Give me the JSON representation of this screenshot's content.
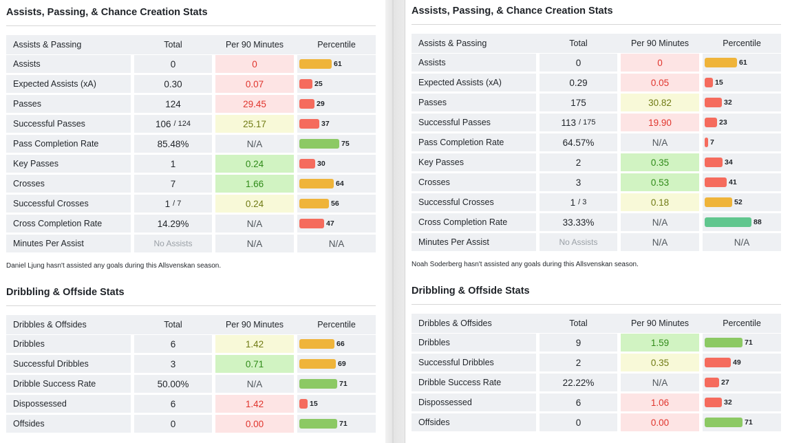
{
  "left": {
    "assists_title": "Assists, Passing, & Chance Creation Stats",
    "assists_headers": [
      "Assists & Passing",
      "Total",
      "Per 90 Minutes",
      "Percentile"
    ],
    "assists_rows": [
      {
        "name": "Assists",
        "total": "0",
        "p90": "0",
        "p90_rating": "bad",
        "pct_label": "61",
        "pct_value": 61,
        "bar_color": "orange"
      },
      {
        "name": "Expected Assists (xA)",
        "total": "0.30",
        "p90": "0.07",
        "p90_rating": "bad",
        "pct_label": "25",
        "pct_value": 25,
        "bar_color": "red"
      },
      {
        "name": "Passes",
        "total": "124",
        "p90": "29.45",
        "p90_rating": "bad",
        "pct_label": "29",
        "pct_value": 29,
        "bar_color": "red"
      },
      {
        "name": "Successful Passes",
        "total": "106",
        "total_of": "/ 124",
        "p90": "25.17",
        "p90_rating": "mid",
        "pct_label": "37",
        "pct_value": 37,
        "bar_color": "red"
      },
      {
        "name": "Pass Completion Rate",
        "total": "85.48%",
        "p90": "N/A",
        "p90_rating": "neutral",
        "pct_label": "75",
        "pct_value": 75,
        "bar_color": "green"
      },
      {
        "name": "Key Passes",
        "total": "1",
        "p90": "0.24",
        "p90_rating": "good",
        "pct_label": "30",
        "pct_value": 30,
        "bar_color": "red"
      },
      {
        "name": "Crosses",
        "total": "7",
        "p90": "1.66",
        "p90_rating": "good",
        "pct_label": "64",
        "pct_value": 64,
        "bar_color": "orange"
      },
      {
        "name": "Successful Crosses",
        "total": "1",
        "total_of": "/ 7",
        "p90": "0.24",
        "p90_rating": "mid",
        "pct_label": "56",
        "pct_value": 56,
        "bar_color": "orange"
      },
      {
        "name": "Cross Completion Rate",
        "total": "14.29%",
        "p90": "N/A",
        "p90_rating": "neutral",
        "pct_label": "47",
        "pct_value": 47,
        "bar_color": "red"
      },
      {
        "name": "Minutes Per Assist",
        "total": "No Assists",
        "total_muted": true,
        "p90": "N/A",
        "p90_rating": "neutral",
        "pct_label": "N/A"
      }
    ],
    "note": "Daniel Ljung hasn't assisted any goals during this Allsvenskan season.",
    "dribbling_title": "Dribbling & Offside Stats",
    "dribbling_headers": [
      "Dribbles & Offsides",
      "Total",
      "Per 90 Minutes",
      "Percentile"
    ],
    "dribbling_rows": [
      {
        "name": "Dribbles",
        "total": "6",
        "p90": "1.42",
        "p90_rating": "mid",
        "pct_label": "66",
        "pct_value": 66,
        "bar_color": "orange"
      },
      {
        "name": "Successful Dribbles",
        "total": "3",
        "p90": "0.71",
        "p90_rating": "good",
        "pct_label": "69",
        "pct_value": 69,
        "bar_color": "orange"
      },
      {
        "name": "Dribble Success Rate",
        "total": "50.00%",
        "p90": "N/A",
        "p90_rating": "neutral",
        "pct_label": "71",
        "pct_value": 71,
        "bar_color": "green"
      },
      {
        "name": "Dispossessed",
        "total": "6",
        "p90": "1.42",
        "p90_rating": "bad",
        "pct_label": "15",
        "pct_value": 15,
        "bar_color": "red"
      },
      {
        "name": "Offsides",
        "total": "0",
        "p90": "0.00",
        "p90_rating": "bad",
        "pct_label": "71",
        "pct_value": 71,
        "bar_color": "green"
      }
    ]
  },
  "right": {
    "assists_title": "Assists, Passing, & Chance Creation Stats",
    "assists_headers": [
      "Assists & Passing",
      "Total",
      "Per 90 Minutes",
      "Percentile"
    ],
    "assists_rows": [
      {
        "name": "Assists",
        "total": "0",
        "p90": "0",
        "p90_rating": "bad",
        "pct_label": "61",
        "pct_value": 61,
        "bar_color": "orange"
      },
      {
        "name": "Expected Assists (xA)",
        "total": "0.29",
        "p90": "0.05",
        "p90_rating": "bad",
        "pct_label": "15",
        "pct_value": 15,
        "bar_color": "red"
      },
      {
        "name": "Passes",
        "total": "175",
        "p90": "30.82",
        "p90_rating": "mid",
        "pct_label": "32",
        "pct_value": 32,
        "bar_color": "red"
      },
      {
        "name": "Successful Passes",
        "total": "113",
        "total_of": "/ 175",
        "p90": "19.90",
        "p90_rating": "bad",
        "pct_label": "23",
        "pct_value": 23,
        "bar_color": "red"
      },
      {
        "name": "Pass Completion Rate",
        "total": "64.57%",
        "p90": "N/A",
        "p90_rating": "neutral",
        "pct_label": "7",
        "pct_value": 7,
        "bar_color": "red"
      },
      {
        "name": "Key Passes",
        "total": "2",
        "p90": "0.35",
        "p90_rating": "good",
        "pct_label": "34",
        "pct_value": 34,
        "bar_color": "red"
      },
      {
        "name": "Crosses",
        "total": "3",
        "p90": "0.53",
        "p90_rating": "good",
        "pct_label": "41",
        "pct_value": 41,
        "bar_color": "red"
      },
      {
        "name": "Successful Crosses",
        "total": "1",
        "total_of": "/ 3",
        "p90": "0.18",
        "p90_rating": "mid",
        "pct_label": "52",
        "pct_value": 52,
        "bar_color": "orange"
      },
      {
        "name": "Cross Completion Rate",
        "total": "33.33%",
        "p90": "N/A",
        "p90_rating": "neutral",
        "pct_label": "88",
        "pct_value": 88,
        "bar_color": "teal"
      },
      {
        "name": "Minutes Per Assist",
        "total": "No Assists",
        "total_muted": true,
        "p90": "N/A",
        "p90_rating": "neutral",
        "pct_label": "N/A"
      }
    ],
    "note": "Noah Soderberg hasn't assisted any goals during this Allsvenskan season.",
    "dribbling_title": "Dribbling & Offside Stats",
    "dribbling_headers": [
      "Dribbles & Offsides",
      "Total",
      "Per 90 Minutes",
      "Percentile"
    ],
    "dribbling_rows": [
      {
        "name": "Dribbles",
        "total": "9",
        "p90": "1.59",
        "p90_rating": "good",
        "pct_label": "71",
        "pct_value": 71,
        "bar_color": "green"
      },
      {
        "name": "Successful Dribbles",
        "total": "2",
        "p90": "0.35",
        "p90_rating": "mid",
        "pct_label": "49",
        "pct_value": 49,
        "bar_color": "red"
      },
      {
        "name": "Dribble Success Rate",
        "total": "22.22%",
        "p90": "N/A",
        "p90_rating": "neutral",
        "pct_label": "27",
        "pct_value": 27,
        "bar_color": "red"
      },
      {
        "name": "Dispossessed",
        "total": "6",
        "p90": "1.06",
        "p90_rating": "bad",
        "pct_label": "32",
        "pct_value": 32,
        "bar_color": "red"
      },
      {
        "name": "Offsides",
        "total": "0",
        "p90": "0.00",
        "p90_rating": "bad",
        "pct_label": "71",
        "pct_value": 71,
        "bar_color": "green"
      }
    ]
  },
  "colors": {
    "bar_red": "#f56b5d",
    "bar_orange": "#efb43a",
    "bar_green": "#8cc964",
    "bar_teal": "#60c68e",
    "p90_bad_bg": "#fde4e4",
    "p90_mid_bg": "#f8f9d8",
    "p90_good_bg": "#d1f3c2",
    "row_bg": "#eef0f3"
  }
}
